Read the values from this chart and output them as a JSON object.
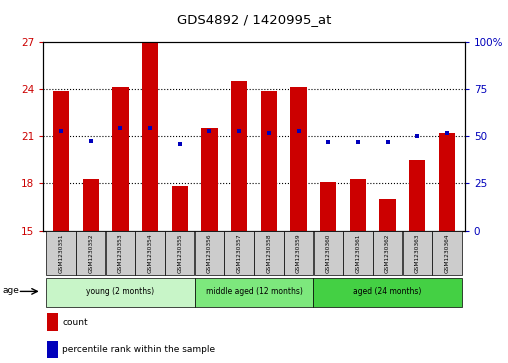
{
  "title": "GDS4892 / 1420995_at",
  "samples": [
    "GSM1230351",
    "GSM1230352",
    "GSM1230353",
    "GSM1230354",
    "GSM1230355",
    "GSM1230356",
    "GSM1230357",
    "GSM1230358",
    "GSM1230359",
    "GSM1230360",
    "GSM1230361",
    "GSM1230362",
    "GSM1230363",
    "GSM1230364"
  ],
  "red_values": [
    23.9,
    18.3,
    24.1,
    27.0,
    17.8,
    21.5,
    24.5,
    23.9,
    24.1,
    18.1,
    18.3,
    17.0,
    19.5,
    21.2
  ],
  "blue_values": [
    21.3,
    20.7,
    21.5,
    21.5,
    20.5,
    21.3,
    21.3,
    21.2,
    21.3,
    20.6,
    20.6,
    20.6,
    21.0,
    21.2
  ],
  "ylim_left": [
    15,
    27
  ],
  "ylim_right": [
    0,
    100
  ],
  "yticks_left": [
    15,
    18,
    21,
    24,
    27
  ],
  "yticks_right": [
    0,
    25,
    50,
    75,
    100
  ],
  "ytick_right_labels": [
    "0",
    "25",
    "50",
    "75",
    "100%"
  ],
  "groups": [
    {
      "label": "young (2 months)",
      "start": 0,
      "end": 5,
      "color": "#c8f5c8"
    },
    {
      "label": "middle aged (12 months)",
      "start": 5,
      "end": 9,
      "color": "#7de87d"
    },
    {
      "label": "aged (24 months)",
      "start": 9,
      "end": 14,
      "color": "#44d044"
    }
  ],
  "red_color": "#cc0000",
  "blue_color": "#0000bb",
  "bar_width": 0.55,
  "background_plot": "#ffffff",
  "background_tick": "#cccccc",
  "left_tick_color": "#cc0000",
  "right_tick_color": "#0000bb",
  "grid_dotted_values": [
    18,
    21,
    24
  ],
  "legend_items": [
    {
      "color": "#cc0000",
      "label": "count"
    },
    {
      "color": "#0000bb",
      "label": "percentile rank within the sample"
    }
  ]
}
